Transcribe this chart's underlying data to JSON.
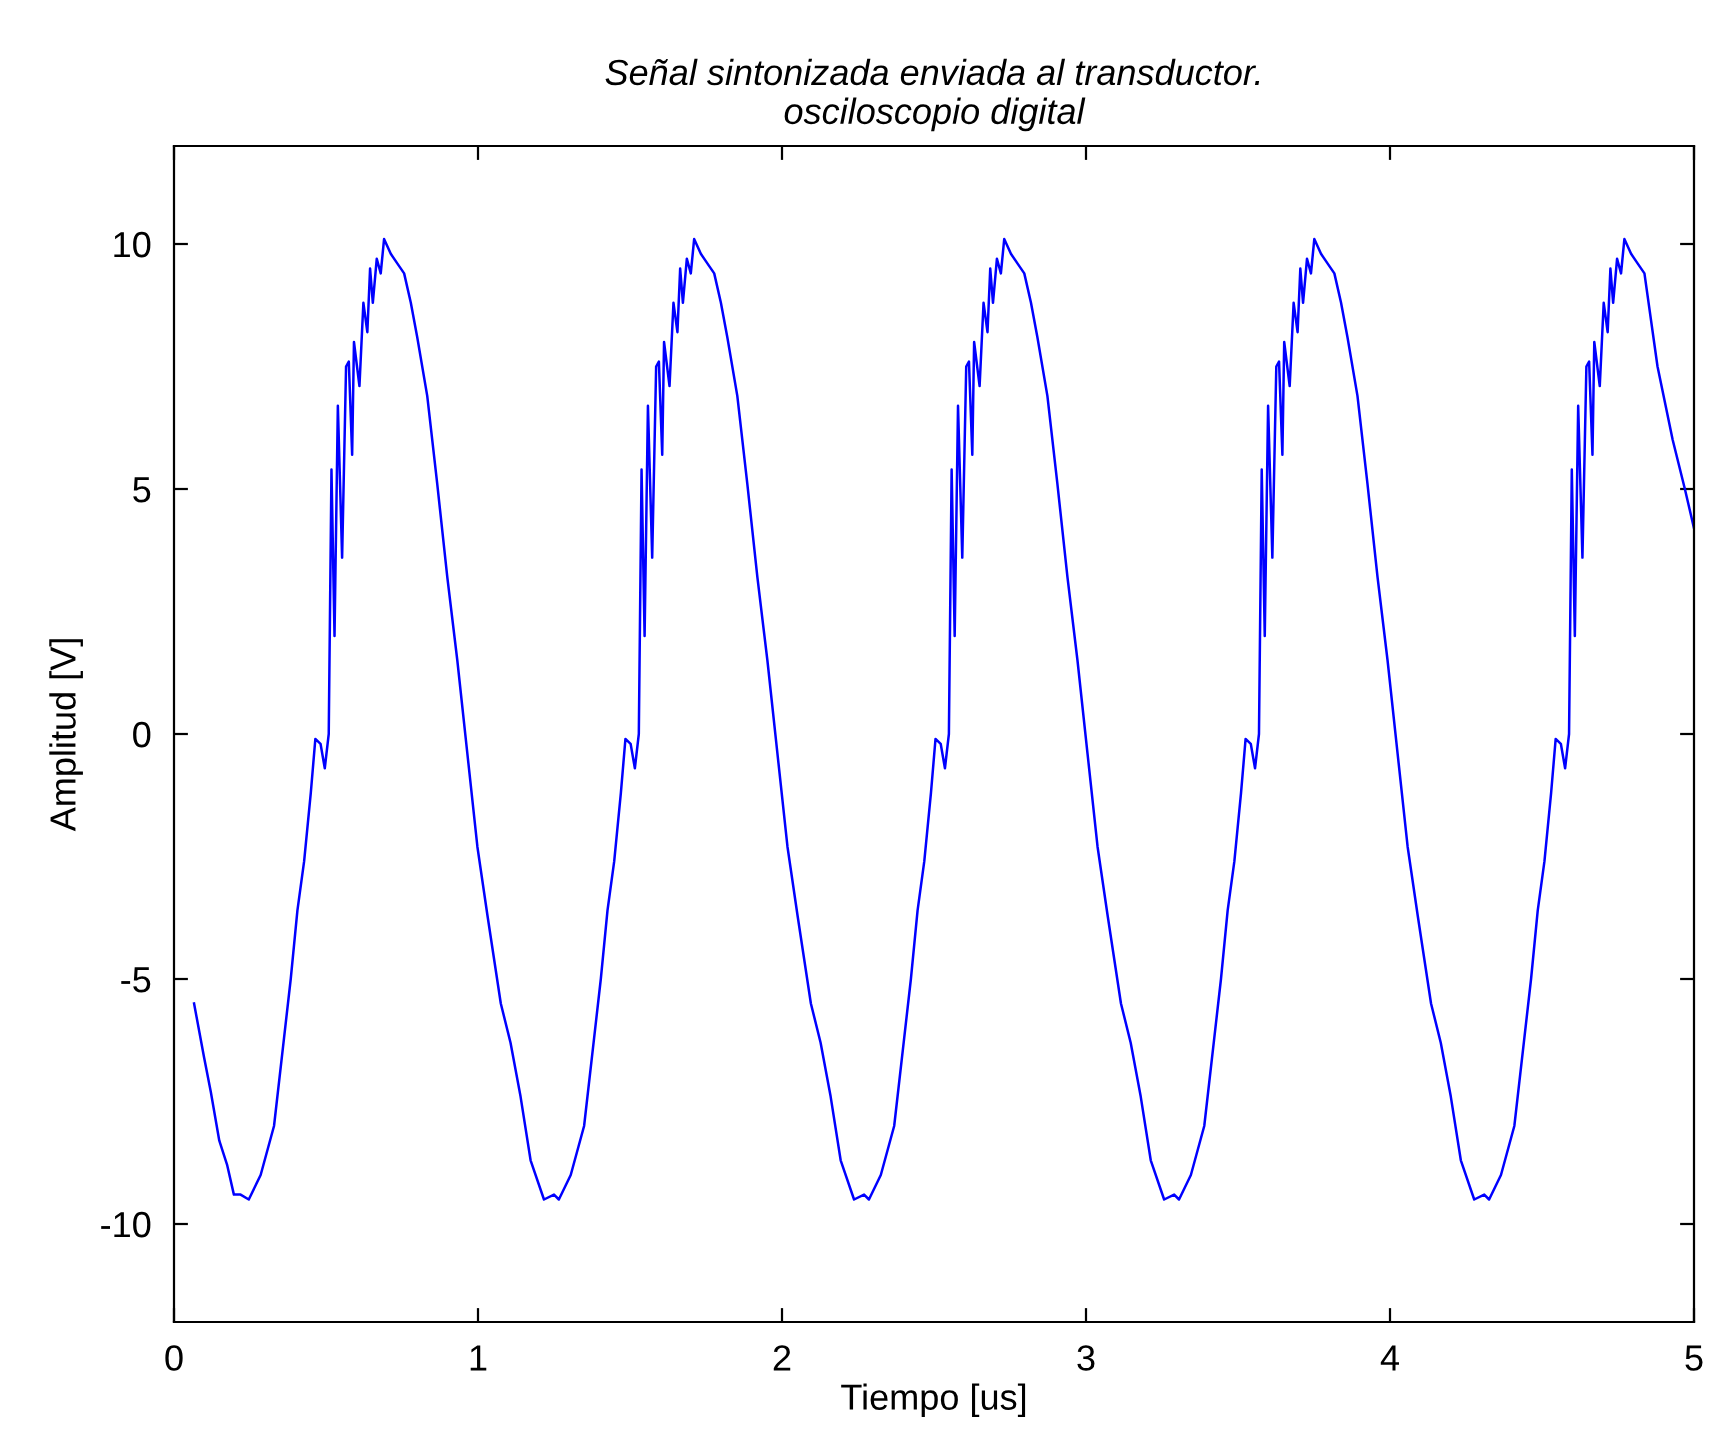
{
  "chart_data": {
    "type": "line",
    "title": "Señal sintonizada enviada al transductor.\nosciloscopio digital",
    "xlabel": "Tiempo [us]",
    "ylabel": "Amplitud [V]",
    "xlim": [
      0,
      5
    ],
    "xticks": [
      0,
      1,
      2,
      3,
      4,
      5
    ],
    "ylim": [
      -12,
      12
    ],
    "yticks": [
      -10,
      -5,
      0,
      5,
      10
    ],
    "grid": false,
    "legend": false,
    "marker": "none",
    "line_style": "solid",
    "series": [
      {
        "color": "#0000ff",
        "x": [
          0.066,
          0.099,
          0.121,
          0.149,
          0.175,
          0.197,
          0.219,
          0.246,
          0.285,
          0.329,
          0.362,
          0.384,
          0.406,
          0.428,
          0.45,
          0.465,
          0.482,
          0.496,
          0.509,
          0.518,
          0.528,
          0.539,
          0.553,
          0.566,
          0.575,
          0.586,
          0.592,
          0.61,
          0.623,
          0.636,
          0.645,
          0.654,
          0.667,
          0.68,
          0.691,
          0.713,
          0.735,
          0.757,
          0.779,
          0.8,
          0.833,
          0.866,
          0.899,
          0.932,
          0.965,
          0.998,
          1.031,
          1.075,
          1.107,
          1.14,
          1.173,
          1.217,
          1.25,
          1.266,
          1.305,
          1.349,
          1.382,
          1.404,
          1.426,
          1.448,
          1.47,
          1.485,
          1.502,
          1.516,
          1.529,
          1.538,
          1.548,
          1.559,
          1.573,
          1.586,
          1.595,
          1.606,
          1.612,
          1.63,
          1.643,
          1.656,
          1.665,
          1.674,
          1.687,
          1.7,
          1.711,
          1.733,
          1.755,
          1.777,
          1.799,
          1.82,
          1.853,
          1.886,
          1.919,
          1.952,
          1.985,
          2.018,
          2.051,
          2.095,
          2.127,
          2.16,
          2.193,
          2.237,
          2.27,
          2.286,
          2.325,
          2.369,
          2.402,
          2.424,
          2.446,
          2.468,
          2.49,
          2.505,
          2.522,
          2.536,
          2.549,
          2.558,
          2.568,
          2.579,
          2.593,
          2.606,
          2.615,
          2.626,
          2.632,
          2.65,
          2.663,
          2.676,
          2.685,
          2.694,
          2.707,
          2.72,
          2.731,
          2.753,
          2.775,
          2.797,
          2.819,
          2.84,
          2.873,
          2.906,
          2.939,
          2.972,
          3.005,
          3.038,
          3.071,
          3.115,
          3.147,
          3.18,
          3.213,
          3.257,
          3.29,
          3.306,
          3.345,
          3.389,
          3.422,
          3.444,
          3.466,
          3.488,
          3.51,
          3.525,
          3.542,
          3.556,
          3.569,
          3.578,
          3.588,
          3.599,
          3.613,
          3.626,
          3.635,
          3.646,
          3.652,
          3.67,
          3.683,
          3.696,
          3.705,
          3.714,
          3.727,
          3.74,
          3.751,
          3.773,
          3.795,
          3.817,
          3.839,
          3.86,
          3.893,
          3.926,
          3.959,
          3.992,
          4.025,
          4.058,
          4.091,
          4.135,
          4.167,
          4.2,
          4.233,
          4.277,
          4.31,
          4.326,
          4.365,
          4.409,
          4.442,
          4.464,
          4.486,
          4.508,
          4.53,
          4.545,
          4.562,
          4.576,
          4.589,
          4.598,
          4.608,
          4.619,
          4.633,
          4.646,
          4.655,
          4.666,
          4.672,
          4.69,
          4.703,
          4.716,
          4.725,
          4.734,
          4.747,
          4.76,
          4.771,
          4.793,
          4.815,
          4.837,
          4.88,
          4.93,
          4.97,
          5.0
        ],
        "values": [
          -5.5,
          -6.6,
          -7.3,
          -8.3,
          -8.8,
          -9.4,
          -9.4,
          -9.5,
          -9,
          -8,
          -6.2,
          -5,
          -3.6,
          -2.6,
          -1.2,
          -0.1,
          -0.2,
          -0.7,
          0,
          5.4,
          2,
          6.7,
          3.6,
          7.5,
          7.6,
          5.7,
          8,
          7.1,
          8.8,
          8.2,
          9.5,
          8.8,
          9.7,
          9.4,
          10.1,
          9.8,
          9.6,
          9.4,
          8.8,
          8.1,
          6.9,
          5.1,
          3.2,
          1.5,
          -0.4,
          -2.3,
          -3.7,
          -5.5,
          -6.3,
          -7.4,
          -8.7,
          -9.5,
          -9.4,
          -9.5,
          -9,
          -8,
          -6.2,
          -5,
          -3.6,
          -2.6,
          -1.2,
          -0.1,
          -0.2,
          -0.7,
          0,
          5.4,
          2,
          6.7,
          3.6,
          7.5,
          7.6,
          5.7,
          8,
          7.1,
          8.8,
          8.2,
          9.5,
          8.8,
          9.7,
          9.4,
          10.1,
          9.8,
          9.6,
          9.4,
          8.8,
          8.1,
          6.9,
          5.1,
          3.2,
          1.5,
          -0.4,
          -2.3,
          -3.7,
          -5.5,
          -6.3,
          -7.4,
          -8.7,
          -9.5,
          -9.4,
          -9.5,
          -9,
          -8,
          -6.2,
          -5,
          -3.6,
          -2.6,
          -1.2,
          -0.1,
          -0.2,
          -0.7,
          0,
          5.4,
          2,
          6.7,
          3.6,
          7.5,
          7.6,
          5.7,
          8,
          7.1,
          8.8,
          8.2,
          9.5,
          8.8,
          9.7,
          9.4,
          10.1,
          9.8,
          9.6,
          9.4,
          8.8,
          8.1,
          6.9,
          5.1,
          3.2,
          1.5,
          -0.4,
          -2.3,
          -3.7,
          -5.5,
          -6.3,
          -7.4,
          -8.7,
          -9.5,
          -9.4,
          -9.5,
          -9,
          -8,
          -6.2,
          -5,
          -3.6,
          -2.6,
          -1.2,
          -0.1,
          -0.2,
          -0.7,
          0,
          5.4,
          2,
          6.7,
          3.6,
          7.5,
          7.6,
          5.7,
          8,
          7.1,
          8.8,
          8.2,
          9.5,
          8.8,
          9.7,
          9.4,
          10.1,
          9.8,
          9.6,
          9.4,
          8.8,
          8.1,
          6.9,
          5.1,
          3.2,
          1.5,
          -0.4,
          -2.3,
          -3.7,
          -5.5,
          -6.3,
          -7.4,
          -8.7,
          -9.5,
          -9.4,
          -9.5,
          -9,
          -8,
          -6.2,
          -5,
          -3.6,
          -2.6,
          -1.2,
          -0.1,
          -0.2,
          -0.7,
          0,
          5.4,
          2,
          6.7,
          3.6,
          7.5,
          7.6,
          5.7,
          8,
          7.1,
          8.8,
          8.2,
          9.5,
          8.8,
          9.7,
          9.4,
          10.1,
          9.8,
          9.6,
          9.4,
          7.5,
          6,
          5,
          4.2
        ]
      }
    ]
  }
}
